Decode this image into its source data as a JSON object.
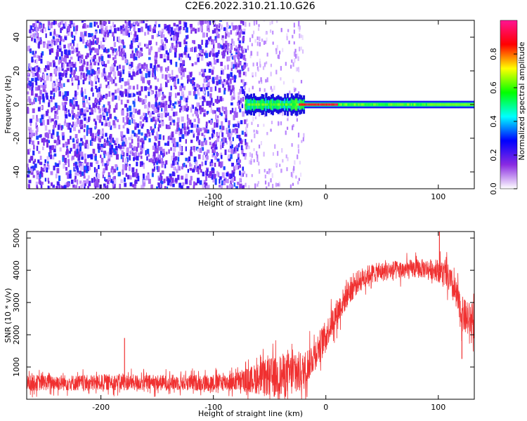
{
  "title": "C2E6.2022.310.21.10.G26",
  "chart_data": [
    {
      "type": "heatmap",
      "title": "C2E6.2022.310.21.10.G26",
      "xlabel": "Height of straight line (km)",
      "ylabel": "Frequency (Hz)",
      "xlim": [
        -266,
        132
      ],
      "ylim": [
        -50,
        50
      ],
      "xticks": [
        -200,
        -100,
        0,
        100
      ],
      "yticks": [
        -40,
        -20,
        0,
        20,
        40
      ],
      "colorbar": {
        "label": "Normalized spectral amplitude",
        "range": [
          0,
          1
        ],
        "ticks": [
          0.0,
          0.2,
          0.4,
          0.6,
          0.8
        ],
        "tick_labels": [
          "0.0",
          "0.2",
          "0.4",
          "0.6",
          "0.8"
        ],
        "colors": [
          "#ffffff",
          "#8a2be2",
          "#0000ff",
          "#00ffff",
          "#00ff00",
          "#ffff00",
          "#ff0000",
          "#ff1493"
        ]
      },
      "regions": [
        {
          "x_range": [
            -266,
            -72
          ],
          "description_level": 0.3,
          "freq_range": [
            -50,
            50
          ],
          "pattern": "broadband noise"
        },
        {
          "x_range": [
            -72,
            -20
          ],
          "description_level": 0.1,
          "freq_range": [
            -50,
            50
          ],
          "pattern": "sparse noise"
        },
        {
          "x_range": [
            -72,
            132
          ],
          "description_level": 0.9,
          "freq_range": [
            -3,
            3
          ],
          "pattern": "narrow line near 0 Hz"
        }
      ],
      "grid": false
    },
    {
      "type": "line",
      "xlabel": "Height of straight line (km)",
      "ylabel": "SNR (10 * v/v)",
      "xlim": [
        -266,
        132
      ],
      "ylim": [
        0,
        5200
      ],
      "xticks": [
        -200,
        -100,
        0,
        100
      ],
      "yticks": [
        1000,
        2000,
        3000,
        4000,
        5000
      ],
      "color": "#f03030",
      "x": [
        -266,
        -250,
        -230,
        -210,
        -190,
        -170,
        -150,
        -130,
        -110,
        -90,
        -75,
        -60,
        -45,
        -35,
        -25,
        -20,
        -10,
        0,
        10,
        20,
        30,
        40,
        50,
        60,
        70,
        80,
        90,
        100,
        105,
        110,
        115,
        120,
        125,
        132
      ],
      "values": [
        500,
        520,
        510,
        500,
        530,
        520,
        510,
        520,
        510,
        530,
        560,
        650,
        700,
        750,
        800,
        850,
        1400,
        2000,
        2700,
        3300,
        3700,
        3900,
        3950,
        4000,
        4000,
        4050,
        4050,
        4000,
        3900,
        3700,
        3300,
        2700,
        2500,
        2400
      ],
      "spread": [
        250,
        250,
        250,
        250,
        250,
        250,
        250,
        250,
        260,
        280,
        320,
        500,
        650,
        700,
        700,
        600,
        500,
        450,
        450,
        400,
        350,
        300,
        300,
        300,
        300,
        300,
        300,
        350,
        400,
        450,
        500,
        550,
        550,
        550
      ],
      "spikes": [
        {
          "x": -179,
          "y": 1900
        },
        {
          "x": 101,
          "y": 5200
        },
        {
          "x": 121,
          "y": 1250
        }
      ],
      "grid": false
    }
  ]
}
